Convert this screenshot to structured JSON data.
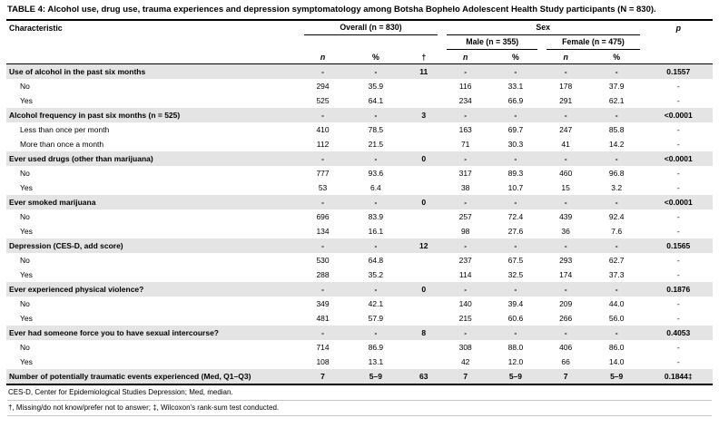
{
  "caption": {
    "label": "TABLE 4:",
    "text": "Alcohol use, drug use, trauma experiences and depression symptomatology among Botsha Bophelo Adolescent Health Study participants (N = 830)."
  },
  "table": {
    "header": {
      "characteristic": "Characteristic",
      "overall": "Overall (n = 830)",
      "sex": "Sex",
      "male": "Male (n = 355)",
      "female": "Female (n = 475)",
      "p": "p",
      "n": "n",
      "pct": "%",
      "dagger": "†"
    },
    "column_names": [
      "overall-n",
      "overall-pct",
      "missing-count",
      "male-n",
      "male-pct",
      "female-n",
      "female-pct",
      "p-value"
    ],
    "rows": [
      {
        "label": "Use of alcohol in the past six months",
        "type": "category",
        "cells": [
          "-",
          "-",
          "11",
          "-",
          "-",
          "-",
          "-",
          "0.1557"
        ]
      },
      {
        "label": "No",
        "type": "sub",
        "cells": [
          "294",
          "35.9",
          "",
          "116",
          "33.1",
          "178",
          "37.9",
          "-"
        ]
      },
      {
        "label": "Yes",
        "type": "sub",
        "cells": [
          "525",
          "64.1",
          "",
          "234",
          "66.9",
          "291",
          "62.1",
          "-"
        ]
      },
      {
        "label": "Alcohol frequency in past six months (n = 525)",
        "type": "category",
        "cells": [
          "-",
          "-",
          "3",
          "-",
          "-",
          "-",
          "-",
          "<0.0001"
        ]
      },
      {
        "label": "Less than once per month",
        "type": "sub",
        "cells": [
          "410",
          "78.5",
          "",
          "163",
          "69.7",
          "247",
          "85.8",
          "-"
        ]
      },
      {
        "label": "More than once a month",
        "type": "sub",
        "cells": [
          "112",
          "21.5",
          "",
          "71",
          "30.3",
          "41",
          "14.2",
          "-"
        ]
      },
      {
        "label": "Ever used drugs (other than marijuana)",
        "type": "category",
        "cells": [
          "-",
          "-",
          "0",
          "-",
          "-",
          "-",
          "-",
          "<0.0001"
        ]
      },
      {
        "label": "No",
        "type": "sub",
        "cells": [
          "777",
          "93.6",
          "",
          "317",
          "89.3",
          "460",
          "96.8",
          "-"
        ]
      },
      {
        "label": "Yes",
        "type": "sub",
        "cells": [
          "53",
          "6.4",
          "",
          "38",
          "10.7",
          "15",
          "3.2",
          "-"
        ]
      },
      {
        "label": "Ever smoked marijuana",
        "type": "category",
        "cells": [
          "-",
          "-",
          "0",
          "-",
          "-",
          "-",
          "-",
          "<0.0001"
        ]
      },
      {
        "label": "No",
        "type": "sub",
        "cells": [
          "696",
          "83.9",
          "",
          "257",
          "72.4",
          "439",
          "92.4",
          "-"
        ]
      },
      {
        "label": "Yes",
        "type": "sub",
        "cells": [
          "134",
          "16.1",
          "",
          "98",
          "27.6",
          "36",
          "7.6",
          "-"
        ]
      },
      {
        "label": "Depression (CES-D, add score)",
        "type": "category",
        "cells": [
          "-",
          "-",
          "12",
          "-",
          "-",
          "-",
          "-",
          "0.1565"
        ]
      },
      {
        "label": "No",
        "type": "sub",
        "cells": [
          "530",
          "64.8",
          "",
          "237",
          "67.5",
          "293",
          "62.7",
          "-"
        ]
      },
      {
        "label": "Yes",
        "type": "sub",
        "cells": [
          "288",
          "35.2",
          "",
          "114",
          "32.5",
          "174",
          "37.3",
          "-"
        ]
      },
      {
        "label": "Ever experienced physical violence?",
        "type": "category",
        "cells": [
          "-",
          "-",
          "0",
          "-",
          "-",
          "-",
          "-",
          "0.1876"
        ]
      },
      {
        "label": "No",
        "type": "sub",
        "cells": [
          "349",
          "42.1",
          "",
          "140",
          "39.4",
          "209",
          "44.0",
          "-"
        ]
      },
      {
        "label": "Yes",
        "type": "sub",
        "cells": [
          "481",
          "57.9",
          "",
          "215",
          "60.6",
          "266",
          "56.0",
          "-"
        ]
      },
      {
        "label": "Ever had someone force you to have sexual intercourse?",
        "type": "category",
        "cells": [
          "-",
          "-",
          "8",
          "-",
          "-",
          "-",
          "-",
          "0.4053"
        ]
      },
      {
        "label": "No",
        "type": "sub",
        "cells": [
          "714",
          "86.9",
          "",
          "308",
          "88.0",
          "406",
          "86.0",
          "-"
        ]
      },
      {
        "label": "Yes",
        "type": "sub",
        "cells": [
          "108",
          "13.1",
          "",
          "42",
          "12.0",
          "66",
          "14.0",
          "-"
        ]
      },
      {
        "label": "Number of potentially traumatic events experienced (Med, Q1–Q3)",
        "type": "category",
        "cells": [
          "7",
          "5–9",
          "63",
          "7",
          "5–9",
          "7",
          "5–9",
          "0.1844‡"
        ]
      }
    ]
  },
  "footnotes": [
    "CES-D, Center for Epidemiological Studies Depression; Med, median.",
    "†, Missing/do not know/prefer not to answer; ‡, Wilcoxon's rank-sum test conducted."
  ],
  "colors": {
    "category_row_bg": "#e4e4e4",
    "border": "#000000"
  }
}
